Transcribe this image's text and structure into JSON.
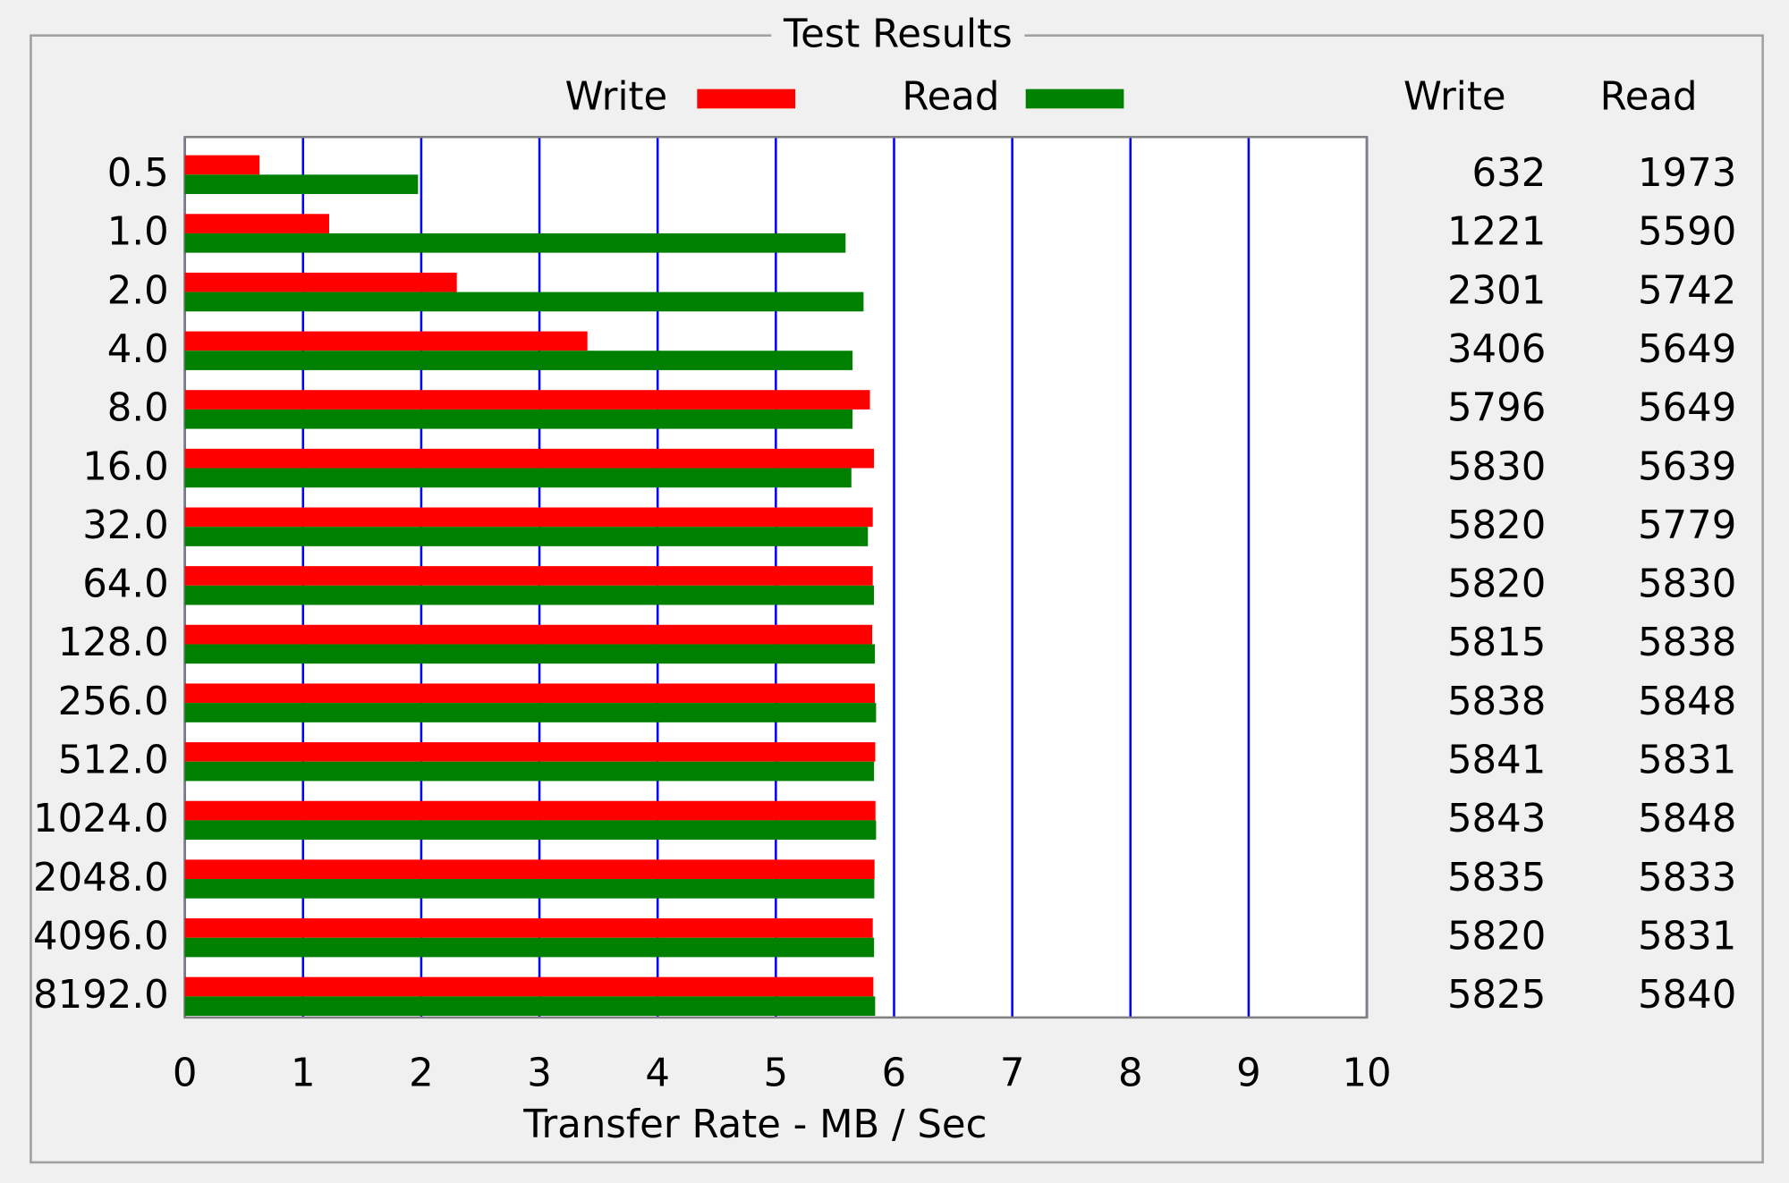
{
  "chart_data": {
    "type": "bar",
    "orientation": "horizontal",
    "title": "Test Results",
    "x_label": "Transfer Rate - MB / Sec",
    "categories": [
      "0.5",
      "1.0",
      "2.0",
      "4.0",
      "8.0",
      "16.0",
      "32.0",
      "64.0",
      "128.0",
      "256.0",
      "512.0",
      "1024.0",
      "2048.0",
      "4096.0",
      "8192.0"
    ],
    "series": [
      {
        "name": "Write",
        "color": "#ff0000",
        "values": [
          0.632,
          1.221,
          2.301,
          3.406,
          5.796,
          5.83,
          5.82,
          5.82,
          5.815,
          5.838,
          5.841,
          5.843,
          5.835,
          5.82,
          5.825
        ],
        "value_labels": [
          "632",
          "1221",
          "2301",
          "3406",
          "5796",
          "5830",
          "5820",
          "5820",
          "5815",
          "5838",
          "5841",
          "5843",
          "5835",
          "5820",
          "5825"
        ]
      },
      {
        "name": "Read",
        "color": "#008000",
        "values": [
          1.973,
          5.59,
          5.742,
          5.649,
          5.649,
          5.639,
          5.779,
          5.83,
          5.838,
          5.848,
          5.831,
          5.848,
          5.833,
          5.831,
          5.84
        ],
        "value_labels": [
          "1973",
          "5590",
          "5742",
          "5649",
          "5649",
          "5639",
          "5779",
          "5830",
          "5838",
          "5848",
          "5831",
          "5848",
          "5833",
          "5831",
          "5840"
        ]
      }
    ],
    "table_columns": [
      "Write",
      "Read"
    ],
    "xlim": [
      0,
      10
    ],
    "xticks": [
      0,
      1,
      2,
      3,
      4,
      5,
      6,
      7,
      8,
      9,
      10
    ],
    "grid": true,
    "grid_color": "#0000ff",
    "legend": "top"
  }
}
